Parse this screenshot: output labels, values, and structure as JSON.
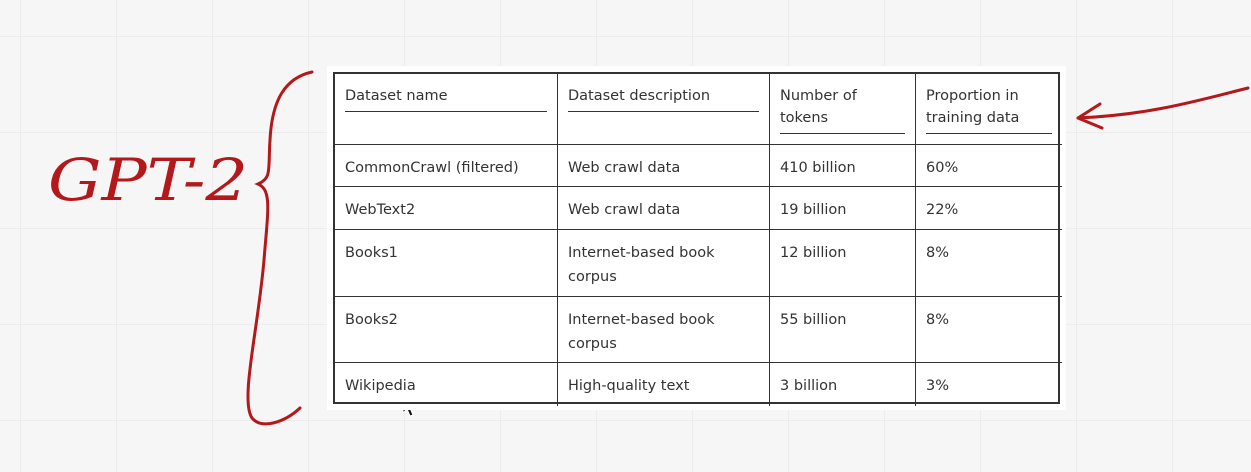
{
  "annotation": {
    "label": "GPT-2"
  },
  "table": {
    "header": [
      "Dataset name",
      "Dataset description",
      "Number of tokens",
      "Proportion in training data"
    ],
    "rows": [
      [
        "CommonCrawl (filtered)",
        "Web crawl data",
        "410 billion",
        "60%"
      ],
      [
        "WebText2",
        "Web crawl data",
        "19 billion",
        "22%"
      ],
      [
        "Books1",
        "Internet-based book corpus",
        "12 billion",
        "8%"
      ],
      [
        "Books2",
        "Internet-based book corpus",
        "55 billion",
        "8%"
      ],
      [
        "Wikipedia",
        "High-quality text",
        "3 billion",
        "3%"
      ]
    ]
  }
}
